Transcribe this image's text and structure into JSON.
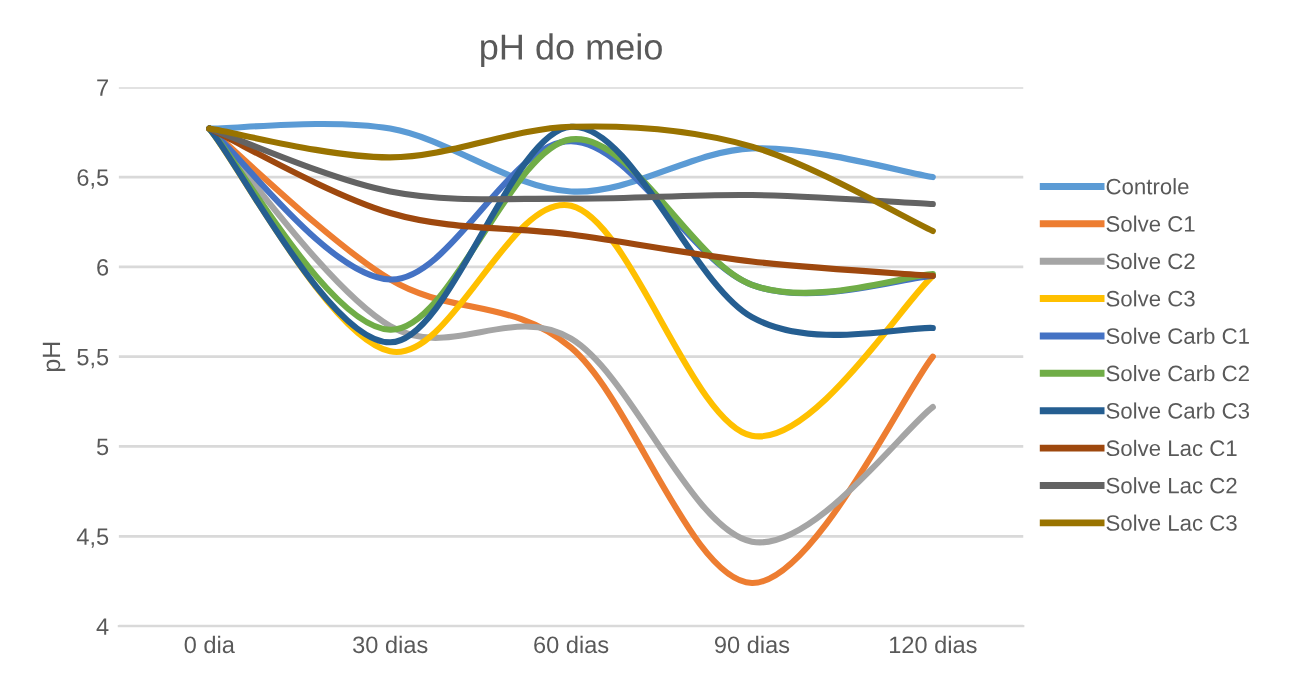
{
  "chart_data": {
    "type": "line",
    "title": "pH do meio",
    "ylabel": "pH",
    "categories": [
      "0 dia",
      "30 dias",
      "60 dias",
      "90 dias",
      "120 dias"
    ],
    "series": [
      {
        "name": "Controle",
        "color": "#5b9bd5",
        "values": [
          6.77,
          6.77,
          6.42,
          6.66,
          6.5
        ]
      },
      {
        "name": "Solve C1",
        "color": "#ed7d31",
        "values": [
          6.77,
          5.93,
          5.55,
          4.24,
          5.5
        ]
      },
      {
        "name": "Solve C2",
        "color": "#a5a5a5",
        "values": [
          6.77,
          5.67,
          5.6,
          4.47,
          5.22
        ]
      },
      {
        "name": "Solve C3",
        "color": "#ffc000",
        "values": [
          6.77,
          5.53,
          6.34,
          5.06,
          5.95
        ]
      },
      {
        "name": "Solve Carb C1",
        "color": "#4472c4",
        "values": [
          6.77,
          5.93,
          6.7,
          5.9,
          5.95
        ]
      },
      {
        "name": "Solve Carb C2",
        "color": "#70ad47",
        "values": [
          6.77,
          5.65,
          6.71,
          5.9,
          5.96
        ]
      },
      {
        "name": "Solve Carb C3",
        "color": "#255e91",
        "values": [
          6.77,
          5.58,
          6.78,
          5.72,
          5.66
        ]
      },
      {
        "name": "Solve Lac C1",
        "color": "#9e480e",
        "values": [
          6.77,
          6.3,
          6.18,
          6.03,
          5.95
        ]
      },
      {
        "name": "Solve Lac C2",
        "color": "#636363",
        "values": [
          6.77,
          6.42,
          6.38,
          6.4,
          6.35
        ]
      },
      {
        "name": "Solve Lac C3",
        "color": "#997300",
        "values": [
          6.77,
          6.61,
          6.78,
          6.67,
          6.2
        ]
      }
    ],
    "ylim": [
      4,
      7
    ],
    "yticks": [
      4,
      {
        "value": 4.5,
        "label": "4,5"
      },
      5,
      {
        "value": 5.5,
        "label": "5,5"
      },
      6,
      {
        "value": 6.5,
        "label": "6,5"
      },
      7
    ],
    "grid": "y",
    "legend": "right",
    "marker": "none",
    "line_style": "solid"
  }
}
